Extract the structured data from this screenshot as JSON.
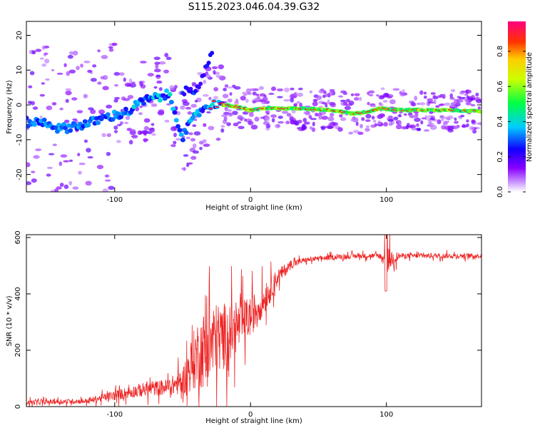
{
  "title": "S115.2023.046.04.39.G32",
  "chart_data": [
    {
      "type": "heatmap",
      "xlabel": "Height of straight line (km)",
      "ylabel": "Frequency (Hz)",
      "xlim": [
        -165,
        170
      ],
      "ylim": [
        -25,
        24
      ],
      "xticks": [
        -100,
        0,
        100
      ],
      "yticks": [
        -20,
        -10,
        0,
        10,
        20
      ],
      "colorbar": {
        "label": "Normalized spectral amplitude",
        "range": [
          0.0,
          0.97
        ],
        "ticks": [
          "0.0",
          "0.2",
          "0.4",
          "0.6",
          "0.8"
        ]
      },
      "ridge": [
        {
          "x": -160,
          "f": -5
        },
        {
          "x": -150,
          "f": -5
        },
        {
          "x": -140,
          "f": -7
        },
        {
          "x": -130,
          "f": -6
        },
        {
          "x": -120,
          "f": -5.5
        },
        {
          "x": -110,
          "f": -4
        },
        {
          "x": -100,
          "f": -3
        },
        {
          "x": -90,
          "f": -2
        },
        {
          "x": -80,
          "f": 1
        },
        {
          "x": -70,
          "f": 2
        },
        {
          "x": -60,
          "f": 3
        },
        {
          "x": -50,
          "f": -9
        },
        {
          "x": -45,
          "f": -6
        },
        {
          "x": -40,
          "f": -3
        },
        {
          "x": -35,
          "f": -1
        },
        {
          "x": -30,
          "f": 0
        },
        {
          "x": -20,
          "f": 0
        },
        {
          "x": -10,
          "f": -0.5
        },
        {
          "x": 0,
          "f": -1.5
        },
        {
          "x": 10,
          "f": -1
        },
        {
          "x": 20,
          "f": -1
        },
        {
          "x": 40,
          "f": -1
        },
        {
          "x": 60,
          "f": -1.5
        },
        {
          "x": 75,
          "f": -2.5
        },
        {
          "x": 85,
          "f": -2
        },
        {
          "x": 95,
          "f": -1
        },
        {
          "x": 110,
          "f": -1.5
        },
        {
          "x": 140,
          "f": -1.5
        },
        {
          "x": 170,
          "f": -1.8
        }
      ],
      "secondary_ridge": [
        {
          "x": -40,
          "f": 4
        },
        {
          "x": -35,
          "f": 8
        },
        {
          "x": -30,
          "f": 14
        }
      ]
    },
    {
      "type": "line",
      "xlabel": "Height of straight line (km)",
      "ylabel": "SNR (10 * v/v)",
      "xlim": [
        -165,
        170
      ],
      "ylim": [
        0,
        610
      ],
      "xticks": [
        -100,
        0,
        100
      ],
      "yticks": [
        0,
        200,
        400,
        600
      ],
      "line_color": "#ee2222",
      "envelope": [
        {
          "x": -165,
          "mean": 15,
          "noise": 15
        },
        {
          "x": -120,
          "mean": 20,
          "noise": 15
        },
        {
          "x": -100,
          "mean": 40,
          "noise": 30
        },
        {
          "x": -80,
          "mean": 60,
          "noise": 40
        },
        {
          "x": -60,
          "mean": 70,
          "noise": 50
        },
        {
          "x": -50,
          "mean": 90,
          "noise": 80
        },
        {
          "x": -40,
          "mean": 180,
          "noise": 200
        },
        {
          "x": -30,
          "mean": 220,
          "noise": 250
        },
        {
          "x": -20,
          "mean": 250,
          "noise": 200
        },
        {
          "x": -10,
          "mean": 280,
          "noise": 150
        },
        {
          "x": 0,
          "mean": 320,
          "noise": 120
        },
        {
          "x": 10,
          "mean": 380,
          "noise": 90
        },
        {
          "x": 20,
          "mean": 460,
          "noise": 50
        },
        {
          "x": 30,
          "mean": 505,
          "noise": 25
        },
        {
          "x": 40,
          "mean": 520,
          "noise": 15
        },
        {
          "x": 60,
          "mean": 530,
          "noise": 15
        },
        {
          "x": 80,
          "mean": 535,
          "noise": 15
        },
        {
          "x": 95,
          "mean": 535,
          "noise": 15
        },
        {
          "x": 100,
          "mean": 520,
          "noise": 80
        },
        {
          "x": 110,
          "mean": 535,
          "noise": 15
        },
        {
          "x": 170,
          "mean": 535,
          "noise": 15
        }
      ]
    }
  ]
}
